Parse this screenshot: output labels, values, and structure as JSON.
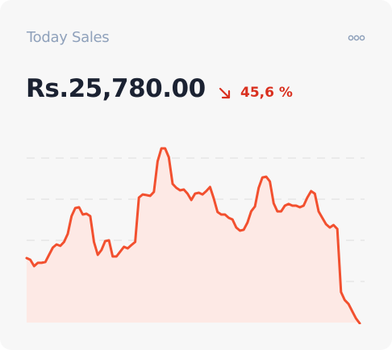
{
  "header": {
    "title": "Today Sales",
    "amount": "Rs.25,780.00",
    "change": "45,6 %"
  },
  "chart_data": {
    "type": "line",
    "color": "#f2502f",
    "fill": "#fde9e5",
    "ylim": [
      0,
      110
    ],
    "gridlines": [
      25,
      50,
      75,
      100
    ],
    "values": [
      39.2,
      38.2,
      34.3,
      36.3,
      36.3,
      36.8,
      41.2,
      45.6,
      47.5,
      46.6,
      49,
      53.9,
      64.7,
      69.6,
      70.1,
      65.7,
      66.2,
      64.7,
      49,
      41.2,
      44.1,
      49.5,
      50,
      40.2,
      40.2,
      43.1,
      46.1,
      45.1,
      47.1,
      49,
      76,
      77.9,
      77.5,
      77,
      79.4,
      98,
      105.9,
      105.9,
      100.5,
      84.3,
      81.9,
      80.4,
      80.9,
      78.4,
      74.5,
      78.4,
      78.9,
      77.9,
      79.9,
      82.4,
      75.5,
      67.2,
      65.7,
      65.7,
      63.7,
      62.7,
      57.8,
      55.9,
      56.4,
      60.8,
      67.6,
      70.6,
      81.9,
      88.2,
      88.7,
      85.8,
      72.5,
      67.6,
      67.6,
      71.1,
      72.1,
      71.1,
      71.1,
      70.1,
      71.1,
      76,
      79.9,
      78.4,
      67.6,
      63.7,
      59.8,
      57.8,
      59.3,
      56.9,
      18.6,
      13.7,
      11.3,
      6.9,
      2.5,
      -0.5
    ]
  }
}
